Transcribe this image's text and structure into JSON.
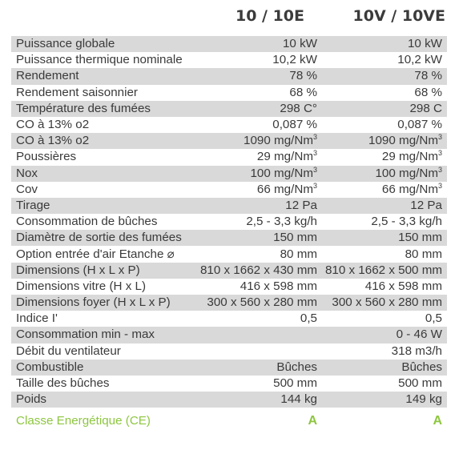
{
  "header": {
    "col1": "10 / 10E",
    "col2": "10V / 10VE"
  },
  "rows": [
    {
      "label": "Puissance globale",
      "v1": "10 kW",
      "v2": "10 kW"
    },
    {
      "label": "Puissance thermique nominale",
      "v1": "10,2 kW",
      "v2": "10,2 kW"
    },
    {
      "label": "Rendement",
      "v1": "78 %",
      "v2": "78 %"
    },
    {
      "label": "Rendement saisonnier",
      "v1": "68 %",
      "v2": "68 %"
    },
    {
      "label": "Température des fumées",
      "v1": "298 C°",
      "v2": "298 C"
    },
    {
      "label": "CO à 13% o2",
      "v1": "0,087 %",
      "v2": "0,087 %"
    },
    {
      "label": "CO à 13% o2",
      "v1": "1090 mg/Nm",
      "v1_sup": "3",
      "v2": "1090 mg/Nm",
      "v2_sup": "3"
    },
    {
      "label": "Poussières",
      "v1": "29 mg/Nm",
      "v1_sup": "3",
      "v2": "29 mg/Nm",
      "v2_sup": "3"
    },
    {
      "label": "Nox",
      "v1": "100 mg/Nm",
      "v1_sup": "3",
      "v2": "100 mg/Nm",
      "v2_sup": "3"
    },
    {
      "label": "Cov",
      "v1": "66 mg/Nm",
      "v1_sup": "3",
      "v2": "66 mg/Nm",
      "v2_sup": "3"
    },
    {
      "label": "Tirage",
      "v1": "12 Pa",
      "v2": "12 Pa"
    },
    {
      "label": "Consommation de bûches",
      "v1": "2,5 - 3,3 kg/h",
      "v2": "2,5 - 3,3 kg/h"
    },
    {
      "label": "Diamètre de sortie des fumées",
      "v1": "150 mm",
      "v2": "150 mm"
    },
    {
      "label": "Option entrée d'air Etanche  ⌀",
      "v1": "80 mm",
      "v2": "80 mm"
    },
    {
      "label": "Dimensions (H x L x P)",
      "v1": "810 x 1662 x 430 mm",
      "v2": "810 x 1662 x 500 mm"
    },
    {
      "label": "Dimensions vitre (H x L)",
      "v1": "416 x 598 mm",
      "v2": "416 x 598 mm"
    },
    {
      "label": "Dimensions foyer (H x L x P)",
      "v1": "300 x 560 x 280 mm",
      "v2": "300 x 560 x 280 mm"
    },
    {
      "label": "Indice I'",
      "v1": "0,5",
      "v2": "0,5"
    },
    {
      "label": "Consommation min - max",
      "v1": "",
      "v2": "0 - 46 W"
    },
    {
      "label": "Débit du ventilateur",
      "v1": "",
      "v2": "318 m3/h"
    },
    {
      "label": "Combustible",
      "v1": "Bûches",
      "v2": "Bûches"
    },
    {
      "label": "Taille des bûches",
      "v1": "500 mm",
      "v2": "500 mm"
    },
    {
      "label": "Poids",
      "v1": "144 kg",
      "v2": "149 kg"
    }
  ],
  "energy": {
    "label": "Classe Energétique (CE)",
    "v1": "A",
    "v2": "A",
    "color": "#8dc63f"
  },
  "colors": {
    "shade": "#d9d9d9",
    "text": "#3a3a3a"
  }
}
